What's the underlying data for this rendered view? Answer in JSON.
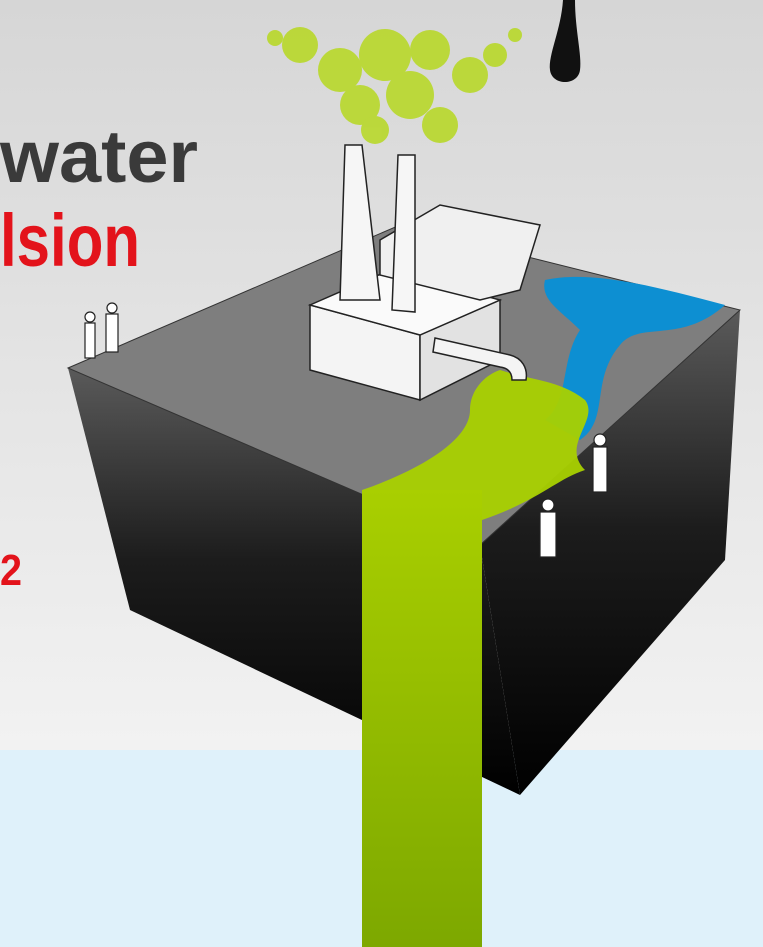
{
  "poster": {
    "title_line1": "water",
    "title_line2": "lsion",
    "number": "2"
  }
}
